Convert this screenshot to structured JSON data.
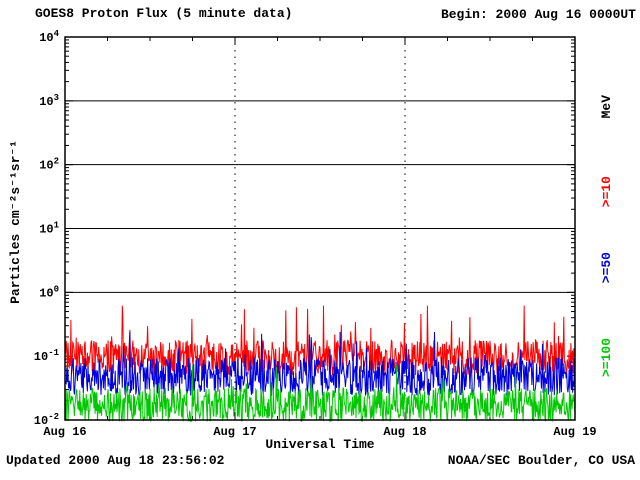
{
  "header": {
    "title": "GOES8 Proton Flux (5 minute data)",
    "begin_label": "Begin: 2000 Aug 16 0000UT"
  },
  "footer": {
    "updated": "Updated 2000 Aug 18 23:56:02",
    "source": "NOAA/SEC Boulder, CO USA"
  },
  "right_labels": {
    "unit": "MeV",
    "series": [
      {
        "label": ">=10",
        "color": "#ff0000"
      },
      {
        "label": ">=50",
        "color": "#0000dd"
      },
      {
        "label": ">=100",
        "color": "#00c800"
      }
    ]
  },
  "chart_data": {
    "type": "line",
    "title": "GOES8 Proton Flux (5 minute data)",
    "xlabel": "Universal Time",
    "ylabel": "Particles cm⁻²s⁻¹sr⁻¹",
    "x_ticks": [
      "Aug 16",
      "Aug 17",
      "Aug 18",
      "Aug 19"
    ],
    "x_range_days": 3,
    "points_per_day": 288,
    "y_scale": "log",
    "ylim": [
      0.01,
      10000
    ],
    "y_tick_exponents": [
      4,
      3,
      2,
      1,
      0,
      -1,
      -2
    ],
    "gridlines": {
      "horizontal_solid_decades": [
        0,
        1,
        2,
        3
      ],
      "vertical_dashed_at_days": [
        1,
        2
      ]
    },
    "series": [
      {
        "name": ">=10 MeV",
        "color": "#ff0000",
        "baseline": 0.095,
        "spread": 0.55,
        "spike_prob": 0.06,
        "spike_amp": 0.75,
        "min": 0.03,
        "max": 0.62
      },
      {
        "name": ">=50 MeV",
        "color": "#0000dd",
        "baseline": 0.048,
        "spread": 0.6,
        "spike_prob": 0.05,
        "spike_amp": 0.55,
        "min": 0.015,
        "max": 0.24
      },
      {
        "name": ">=100 MeV",
        "color": "#00c800",
        "baseline": 0.017,
        "spread": 0.55,
        "spike_prob": 0.05,
        "spike_amp": 0.5,
        "min": 0.0095,
        "max": 0.085
      }
    ]
  }
}
